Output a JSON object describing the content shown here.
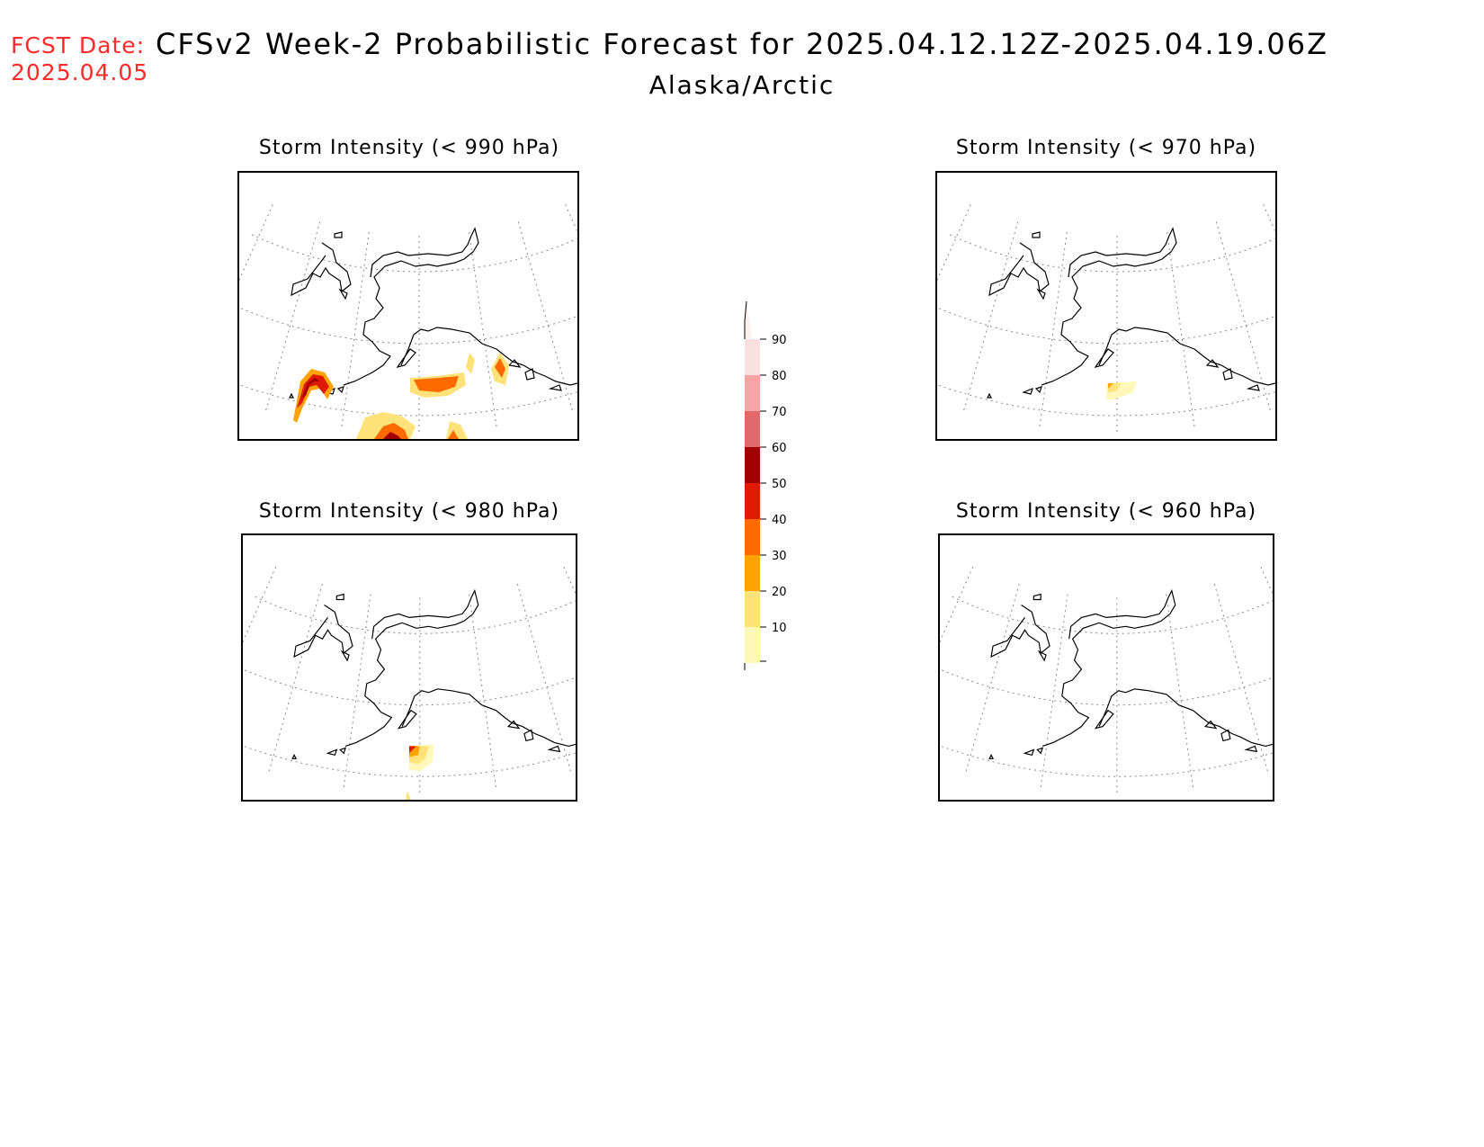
{
  "header": {
    "fcst_label": "FCST Date:",
    "fcst_date": "2025.04.05",
    "title": "CFSv2 Week-2 Probabilistic Forecast for 2025.04.12.12Z-2025.04.19.06Z",
    "region": "Alaska/Arctic"
  },
  "panels": [
    {
      "title": "Storm Intensity (< 990 hPa)"
    },
    {
      "title": "Storm Intensity (< 970 hPa)"
    },
    {
      "title": "Storm Intensity (< 980 hPa)"
    },
    {
      "title": "Storm Intensity (< 960 hPa)"
    }
  ],
  "colorbar": {
    "labels": [
      "90",
      "80",
      "70",
      "60",
      "50",
      "40",
      "30",
      "20",
      "10"
    ],
    "colors": [
      "#fbe0e0",
      "#f4a6a6",
      "#e06a6a",
      "#a00000",
      "#e01a00",
      "#ff6a00",
      "#ffa300",
      "#ffe27a",
      "#fff8b8"
    ]
  }
}
